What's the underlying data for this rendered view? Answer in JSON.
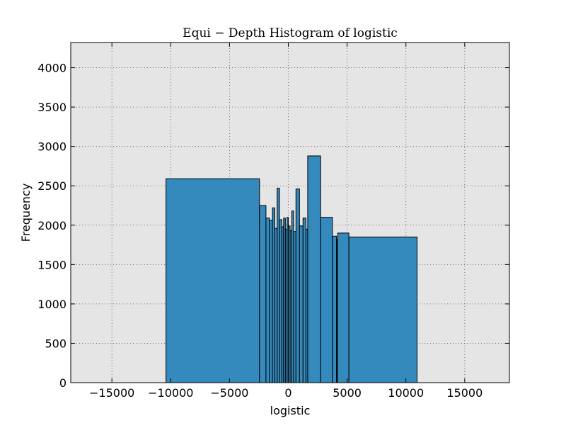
{
  "chart_data": {
    "type": "bar",
    "title": "Equi − Depth Histogram of logistic",
    "xlabel": "logistic",
    "ylabel": "Frequency",
    "xlim": [
      -18500,
      18800
    ],
    "ylim": [
      0,
      4320
    ],
    "xticks": [
      -15000,
      -10000,
      -5000,
      0,
      5000,
      10000,
      15000
    ],
    "xtick_labels": [
      "−15000",
      "−10000",
      "−5000",
      "0",
      "5000",
      "10000",
      "15000"
    ],
    "yticks": [
      0,
      500,
      1000,
      1500,
      2000,
      2500,
      3000,
      3500,
      4000
    ],
    "ytick_labels": [
      "0",
      "500",
      "1000",
      "1500",
      "2000",
      "2500",
      "3000",
      "3500",
      "4000"
    ],
    "grid": true,
    "colors": {
      "bar_fill": "#348abd",
      "bar_edge": "#000000",
      "plot_bg": "#e5e5e5",
      "grid": "#555555"
    },
    "bins": [
      {
        "x0": -10400,
        "x1": -2450,
        "y": 2590
      },
      {
        "x0": -2450,
        "x1": -1900,
        "y": 2250
      },
      {
        "x0": -1900,
        "x1": -1600,
        "y": 2090
      },
      {
        "x0": -1600,
        "x1": -1350,
        "y": 2060
      },
      {
        "x0": -1350,
        "x1": -1150,
        "y": 2220
      },
      {
        "x0": -1150,
        "x1": -950,
        "y": 1960
      },
      {
        "x0": -950,
        "x1": -750,
        "y": 2470
      },
      {
        "x0": -750,
        "x1": -550,
        "y": 2070
      },
      {
        "x0": -550,
        "x1": -400,
        "y": 1980
      },
      {
        "x0": -400,
        "x1": -250,
        "y": 2090
      },
      {
        "x0": -250,
        "x1": -100,
        "y": 1950
      },
      {
        "x0": -100,
        "x1": 0,
        "y": 2100
      },
      {
        "x0": 0,
        "x1": 150,
        "y": 1990
      },
      {
        "x0": 150,
        "x1": 300,
        "y": 1930
      },
      {
        "x0": 300,
        "x1": 450,
        "y": 2180
      },
      {
        "x0": 450,
        "x1": 650,
        "y": 1920
      },
      {
        "x0": 650,
        "x1": 950,
        "y": 2460
      },
      {
        "x0": 950,
        "x1": 1250,
        "y": 1990
      },
      {
        "x0": 1250,
        "x1": 1500,
        "y": 2090
      },
      {
        "x0": 1500,
        "x1": 1650,
        "y": 1950
      },
      {
        "x0": 1650,
        "x1": 2750,
        "y": 2880
      },
      {
        "x0": 2750,
        "x1": 3750,
        "y": 2100
      },
      {
        "x0": 3750,
        "x1": 4100,
        "y": 1860
      },
      {
        "x0": 4100,
        "x1": 4200,
        "y": 1820
      },
      {
        "x0": 4200,
        "x1": 5150,
        "y": 1900
      },
      {
        "x0": 5150,
        "x1": 10950,
        "y": 1850
      }
    ]
  }
}
